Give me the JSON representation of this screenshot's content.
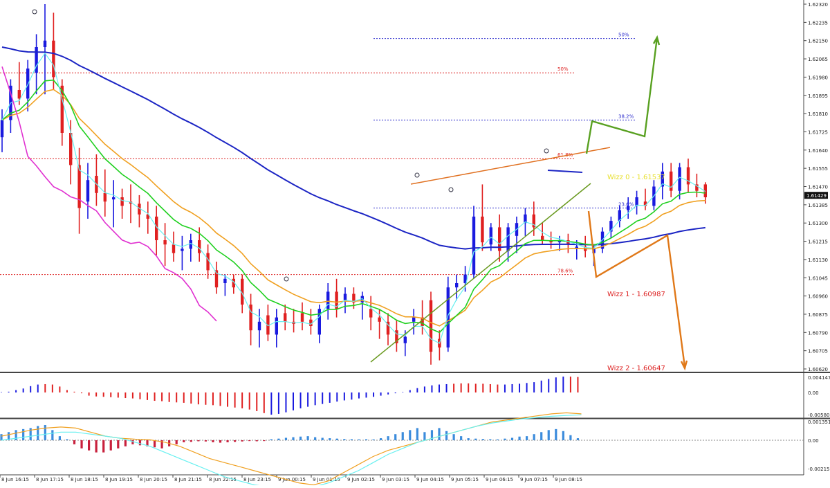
{
  "chart_data": {
    "type": "candlestick",
    "ylim": [
      1.0,
      1.6232
    ],
    "y_ticks": [
      "1.62320",
      "1.62235",
      "1.62150",
      "1.62065",
      "1.61980",
      "1.61895",
      "1.61810",
      "1.61725",
      "1.61640",
      "1.61555",
      "1.61470",
      "1.61385",
      "1.61300",
      "1.61215",
      "1.61130",
      "1.61045",
      "1.60960",
      "1.60875",
      "1.60790",
      "1.60705",
      "1.60620"
    ],
    "current_price": "1.61429",
    "x_ticks": [
      "8 Jun 16:15",
      "8 Jun 17:15",
      "8 Jun 18:15",
      "8 Jun 19:15",
      "8 Jun 20:15",
      "8 Jun 21:15",
      "8 Jun 22:15",
      "8 Jun 23:15",
      "9 Jun 00:15",
      "9 Jun 01:15",
      "9 Jun 02:15",
      "9 Jun 03:15",
      "9 Jun 04:15",
      "9 Jun 05:15",
      "9 Jun 06:15",
      "9 Jun 07:15",
      "9 Jun 08:15"
    ],
    "fib_levels": [
      {
        "label": "50%",
        "price": 1.6216,
        "color": "#2a2acc"
      },
      {
        "label": "38.2%",
        "price": 1.6178,
        "color": "#2a2acc"
      },
      {
        "label": "23.6%",
        "price": 1.6137,
        "color": "#2a2acc"
      },
      {
        "label": "50%",
        "price": 1.62,
        "color": "#dd2222"
      },
      {
        "label": "61.8%",
        "price": 1.616,
        "color": "#dd2222"
      },
      {
        "label": "78.6%",
        "price": 1.6106,
        "color": "#dd2222"
      }
    ],
    "wizz_labels": [
      {
        "text": "Wizz 0 - 1.61537",
        "color": "#e8e030"
      },
      {
        "text": "Wizz 1 - 1.60987",
        "color": "#dd2222"
      },
      {
        "text": "Wizz 2 - 1.60647",
        "color": "#dd2222"
      }
    ],
    "candles": [
      {
        "o": 1.617,
        "h": 1.6183,
        "l": 1.6163,
        "c": 1.6178
      },
      {
        "o": 1.6178,
        "h": 1.6197,
        "l": 1.6172,
        "c": 1.6194
      },
      {
        "o": 1.6192,
        "h": 1.6205,
        "l": 1.6185,
        "c": 1.6188
      },
      {
        "o": 1.6188,
        "h": 1.6206,
        "l": 1.6182,
        "c": 1.6202
      },
      {
        "o": 1.62,
        "h": 1.6218,
        "l": 1.619,
        "c": 1.6212
      },
      {
        "o": 1.6212,
        "h": 1.6232,
        "l": 1.619,
        "c": 1.6215
      },
      {
        "o": 1.6215,
        "h": 1.6228,
        "l": 1.6192,
        "c": 1.6198
      },
      {
        "o": 1.6194,
        "h": 1.6197,
        "l": 1.6166,
        "c": 1.6172
      },
      {
        "o": 1.6172,
        "h": 1.6178,
        "l": 1.6148,
        "c": 1.6157
      },
      {
        "o": 1.6157,
        "h": 1.6165,
        "l": 1.6125,
        "c": 1.6137
      },
      {
        "o": 1.614,
        "h": 1.6158,
        "l": 1.6132,
        "c": 1.615
      },
      {
        "o": 1.6152,
        "h": 1.6162,
        "l": 1.6138,
        "c": 1.6144
      },
      {
        "o": 1.6144,
        "h": 1.6155,
        "l": 1.6133,
        "c": 1.614
      },
      {
        "o": 1.6141,
        "h": 1.615,
        "l": 1.6128,
        "c": 1.6142
      },
      {
        "o": 1.6142,
        "h": 1.6146,
        "l": 1.6132,
        "c": 1.6138
      },
      {
        "o": 1.614,
        "h": 1.6148,
        "l": 1.613,
        "c": 1.6139
      },
      {
        "o": 1.6139,
        "h": 1.6143,
        "l": 1.6128,
        "c": 1.6134
      },
      {
        "o": 1.6134,
        "h": 1.614,
        "l": 1.6125,
        "c": 1.6132
      },
      {
        "o": 1.6133,
        "h": 1.6138,
        "l": 1.6115,
        "c": 1.6122
      },
      {
        "o": 1.6122,
        "h": 1.613,
        "l": 1.611,
        "c": 1.612
      },
      {
        "o": 1.612,
        "h": 1.6126,
        "l": 1.6112,
        "c": 1.6116
      },
      {
        "o": 1.6117,
        "h": 1.6124,
        "l": 1.6108,
        "c": 1.6118
      },
      {
        "o": 1.6118,
        "h": 1.6125,
        "l": 1.6112,
        "c": 1.6122
      },
      {
        "o": 1.6122,
        "h": 1.6128,
        "l": 1.6112,
        "c": 1.6116
      },
      {
        "o": 1.6116,
        "h": 1.612,
        "l": 1.6104,
        "c": 1.6108
      },
      {
        "o": 1.6108,
        "h": 1.6112,
        "l": 1.6097,
        "c": 1.61
      },
      {
        "o": 1.6102,
        "h": 1.6106,
        "l": 1.6096,
        "c": 1.6104
      },
      {
        "o": 1.6104,
        "h": 1.6106,
        "l": 1.6097,
        "c": 1.61
      },
      {
        "o": 1.6104,
        "h": 1.6106,
        "l": 1.6088,
        "c": 1.6092
      },
      {
        "o": 1.6092,
        "h": 1.6097,
        "l": 1.6073,
        "c": 1.608
      },
      {
        "o": 1.608,
        "h": 1.609,
        "l": 1.6072,
        "c": 1.6084
      },
      {
        "o": 1.6087,
        "h": 1.6092,
        "l": 1.6075,
        "c": 1.6078
      },
      {
        "o": 1.6078,
        "h": 1.609,
        "l": 1.6072,
        "c": 1.6086
      },
      {
        "o": 1.6088,
        "h": 1.6092,
        "l": 1.608,
        "c": 1.6084
      },
      {
        "o": 1.6084,
        "h": 1.609,
        "l": 1.6079,
        "c": 1.6083
      },
      {
        "o": 1.6088,
        "h": 1.6093,
        "l": 1.608,
        "c": 1.6084
      },
      {
        "o": 1.6085,
        "h": 1.609,
        "l": 1.6078,
        "c": 1.6082
      },
      {
        "o": 1.6078,
        "h": 1.6092,
        "l": 1.6074,
        "c": 1.609
      },
      {
        "o": 1.609,
        "h": 1.6102,
        "l": 1.6085,
        "c": 1.6098
      },
      {
        "o": 1.6098,
        "h": 1.6104,
        "l": 1.6086,
        "c": 1.609
      },
      {
        "o": 1.6094,
        "h": 1.61,
        "l": 1.6088,
        "c": 1.6097
      },
      {
        "o": 1.6097,
        "h": 1.61,
        "l": 1.609,
        "c": 1.6093
      },
      {
        "o": 1.6093,
        "h": 1.6098,
        "l": 1.6085,
        "c": 1.6096
      },
      {
        "o": 1.609,
        "h": 1.6096,
        "l": 1.608,
        "c": 1.6086
      },
      {
        "o": 1.6086,
        "h": 1.609,
        "l": 1.6076,
        "c": 1.6084
      },
      {
        "o": 1.6084,
        "h": 1.6088,
        "l": 1.6073,
        "c": 1.6078
      },
      {
        "o": 1.608,
        "h": 1.6085,
        "l": 1.607,
        "c": 1.6074
      },
      {
        "o": 1.6074,
        "h": 1.608,
        "l": 1.6068,
        "c": 1.6077
      },
      {
        "o": 1.6084,
        "h": 1.609,
        "l": 1.6078,
        "c": 1.6086
      },
      {
        "o": 1.6086,
        "h": 1.6094,
        "l": 1.6078,
        "c": 1.6082
      },
      {
        "o": 1.6094,
        "h": 1.6098,
        "l": 1.6064,
        "c": 1.607
      },
      {
        "o": 1.6076,
        "h": 1.608,
        "l": 1.6066,
        "c": 1.6072
      },
      {
        "o": 1.6072,
        "h": 1.6105,
        "l": 1.607,
        "c": 1.61
      },
      {
        "o": 1.61,
        "h": 1.6106,
        "l": 1.6094,
        "c": 1.6102
      },
      {
        "o": 1.6102,
        "h": 1.611,
        "l": 1.6098,
        "c": 1.6106
      },
      {
        "o": 1.6106,
        "h": 1.6138,
        "l": 1.6104,
        "c": 1.6133
      },
      {
        "o": 1.6133,
        "h": 1.6148,
        "l": 1.6117,
        "c": 1.6121
      },
      {
        "o": 1.612,
        "h": 1.613,
        "l": 1.6117,
        "c": 1.6128
      },
      {
        "o": 1.6128,
        "h": 1.6134,
        "l": 1.6112,
        "c": 1.6117
      },
      {
        "o": 1.6117,
        "h": 1.613,
        "l": 1.6112,
        "c": 1.6128
      },
      {
        "o": 1.6124,
        "h": 1.6133,
        "l": 1.6116,
        "c": 1.613
      },
      {
        "o": 1.613,
        "h": 1.6137,
        "l": 1.6124,
        "c": 1.6134
      },
      {
        "o": 1.6134,
        "h": 1.614,
        "l": 1.6124,
        "c": 1.6128
      },
      {
        "o": 1.6124,
        "h": 1.613,
        "l": 1.612,
        "c": 1.6122
      },
      {
        "o": 1.6122,
        "h": 1.6126,
        "l": 1.6118,
        "c": 1.6121
      },
      {
        "o": 1.6121,
        "h": 1.6124,
        "l": 1.6117,
        "c": 1.6122
      },
      {
        "o": 1.6122,
        "h": 1.6125,
        "l": 1.6116,
        "c": 1.612
      },
      {
        "o": 1.6118,
        "h": 1.6122,
        "l": 1.6113,
        "c": 1.6119
      },
      {
        "o": 1.6119,
        "h": 1.6124,
        "l": 1.6114,
        "c": 1.6117
      },
      {
        "o": 1.6116,
        "h": 1.612,
        "l": 1.611,
        "c": 1.6118
      },
      {
        "o": 1.6118,
        "h": 1.6128,
        "l": 1.6116,
        "c": 1.6126
      },
      {
        "o": 1.6126,
        "h": 1.6133,
        "l": 1.6123,
        "c": 1.6131
      },
      {
        "o": 1.6131,
        "h": 1.6138,
        "l": 1.6128,
        "c": 1.6136
      },
      {
        "o": 1.6136,
        "h": 1.6142,
        "l": 1.6132,
        "c": 1.6138
      },
      {
        "o": 1.6138,
        "h": 1.6145,
        "l": 1.6134,
        "c": 1.6142
      },
      {
        "o": 1.614,
        "h": 1.6146,
        "l": 1.6136,
        "c": 1.6138
      },
      {
        "o": 1.6138,
        "h": 1.615,
        "l": 1.6136,
        "c": 1.6147
      },
      {
        "o": 1.6147,
        "h": 1.6158,
        "l": 1.6141,
        "c": 1.6154
      },
      {
        "o": 1.6154,
        "h": 1.6158,
        "l": 1.6142,
        "c": 1.6145
      },
      {
        "o": 1.6145,
        "h": 1.6158,
        "l": 1.6141,
        "c": 1.6156
      },
      {
        "o": 1.6156,
        "h": 1.616,
        "l": 1.6144,
        "c": 1.6148
      },
      {
        "o": 1.6148,
        "h": 1.6153,
        "l": 1.6142,
        "c": 1.6145
      },
      {
        "o": 1.6148,
        "h": 1.6149,
        "l": 1.6139,
        "c": 1.6142
      }
    ],
    "ac_ylim": [
      -0.005801,
      0.004147
    ],
    "ac_ticks": [
      "0.004147",
      "0.00",
      "-0.005801"
    ],
    "ac_values": [
      0.0001,
      0.0002,
      0.0006,
      0.001,
      0.0016,
      0.002,
      0.0021,
      0.002,
      0.0015,
      0.0006,
      0.0002,
      -0.0002,
      -0.0008,
      -0.001,
      -0.0011,
      -0.0012,
      -0.0013,
      -0.0014,
      -0.0015,
      -0.0017,
      -0.0019,
      -0.0021,
      -0.0022,
      -0.0024,
      -0.0025,
      -0.0026,
      -0.0028,
      -0.003,
      -0.0031,
      -0.0032,
      -0.0034,
      -0.0036,
      -0.0038,
      -0.004,
      -0.0043,
      -0.0047,
      -0.0052,
      -0.0056,
      -0.0054,
      -0.005,
      -0.0045,
      -0.004,
      -0.0036,
      -0.0032,
      -0.0029,
      -0.0026,
      -0.0023,
      -0.002,
      -0.0018,
      -0.0015,
      -0.0013,
      -0.0011,
      -0.0008,
      -0.0005,
      -0.0002,
      0.0001,
      0.0006,
      0.0011,
      0.0015,
      0.0018,
      0.002,
      0.0021,
      0.0022,
      0.0023,
      0.0023,
      0.0022,
      0.0022,
      0.0021,
      0.002,
      0.002,
      0.0021,
      0.0022,
      0.0024,
      0.0026,
      0.003,
      0.0034,
      0.0038,
      0.004,
      0.004,
      0.0039
    ],
    "ac_colors": [
      "b",
      "b",
      "b",
      "b",
      "b",
      "b",
      "r",
      "r",
      "r",
      "r",
      "r",
      "r",
      "r",
      "r",
      "r",
      "r",
      "r",
      "r",
      "r",
      "r",
      "r",
      "r",
      "r",
      "r",
      "r",
      "r",
      "r",
      "r",
      "r",
      "r",
      "r",
      "r",
      "r",
      "r",
      "r",
      "r",
      "r",
      "b",
      "b",
      "b",
      "b",
      "b",
      "b",
      "b",
      "b",
      "b",
      "b",
      "b",
      "b",
      "b",
      "b",
      "b",
      "b",
      "b",
      "b",
      "b",
      "b",
      "b",
      "b",
      "b",
      "b",
      "b",
      "r",
      "r",
      "r",
      "r",
      "r",
      "r",
      "r",
      "b",
      "b",
      "b",
      "b",
      "b",
      "b",
      "b",
      "b",
      "b",
      "r",
      "r"
    ],
    "osc_ylim": [
      -0.002151,
      0.001351
    ],
    "osc_ticks": [
      "0.0013517",
      "0.00",
      "-0.002151"
    ],
    "osc_bars": [
      0.0003,
      0.0004,
      0.0005,
      0.00055,
      0.0006,
      0.0007,
      0.00075,
      0.0005,
      0.0002,
      5e-05,
      -0.0002,
      -0.0004,
      -0.0005,
      -0.0006,
      -0.0006,
      -0.0005,
      -0.0004,
      -0.0003,
      -0.0002,
      -0.00025,
      -0.0003,
      -0.00035,
      -0.0004,
      -0.0003,
      -0.0002,
      -0.0001,
      -8e-05,
      -5e-05,
      -6e-05,
      -0.0001,
      -0.00012,
      -0.0001,
      -8e-05,
      -6e-05,
      -4e-05,
      -5e-05,
      -4e-05,
      5e-05,
      8e-05,
      0.00012,
      0.00015,
      0.00018,
      0.0002,
      0.00015,
      0.00012,
      0.0001,
      8e-05,
      6e-05,
      5e-05,
      4e-05,
      5e-05,
      4e-05,
      0.0001,
      0.0002,
      0.0003,
      0.0004,
      0.0005,
      0.0006,
      0.0004,
      0.0005,
      0.0006,
      0.00045,
      0.0003,
      0.0002,
      0.0001,
      8e-05,
      6e-05,
      5e-05,
      4e-05,
      8e-05,
      0.00012,
      0.00018,
      0.0002,
      0.0003,
      0.0004,
      0.0005,
      0.00055,
      0.00045,
      0.00025,
      0.0001
    ],
    "osc_signal": [
      0.0002,
      0.00035,
      0.0005,
      0.0006,
      0.00065,
      0.0006,
      0.0004,
      0.0002,
      0.0001,
      5e-05,
      2e-05,
      -0.0001,
      -0.0003,
      -0.0006,
      -0.0009,
      -0.0011,
      -0.0013,
      -0.0015,
      -0.0017,
      -0.0019,
      -0.0021,
      -0.0022,
      -0.002,
      -0.0016,
      -0.0012,
      -0.0008,
      -0.0005,
      -0.0003,
      -0.0001,
      0.0001,
      0.0003,
      0.0005,
      0.0007,
      0.0009,
      0.001,
      0.0011,
      0.0012,
      0.0013,
      0.00135,
      0.0013
    ],
    "osc_signal2": [
      0.0,
      0.0001,
      0.0002,
      0.0003,
      0.0004,
      0.0004,
      0.0003,
      0.0002,
      0.0001,
      -0.0001,
      -0.0003,
      -0.0006,
      -0.0009,
      -0.0012,
      -0.0015,
      -0.0018,
      -0.002,
      -0.0022,
      -0.0023,
      -0.0024,
      -0.0024,
      -0.0023,
      -0.0021,
      -0.0018,
      -0.0015,
      -0.0011,
      -0.0007,
      -0.0004,
      -0.0001,
      0.0001,
      0.0003,
      0.0005,
      0.0007,
      0.00085,
      0.00095,
      0.00105,
      0.00112,
      0.00118,
      0.00122,
      0.00125
    ],
    "colors": {
      "bull": "#1a1adf",
      "bear": "#e02020",
      "doji": "#909090",
      "ema_blue": "#1c25c4",
      "ema_orange": "#f0a020",
      "ema_green": "#20d020",
      "ema_cyan": "#66f0f0",
      "ema_magenta": "#e030d0",
      "trend_green": "#6a9a20",
      "trend_orange": "#e07020",
      "arrow_green": "#58a020",
      "arrow_orange": "#e07818",
      "osc_blue": "#3c8cdc",
      "osc_red": "#c8203c"
    }
  }
}
